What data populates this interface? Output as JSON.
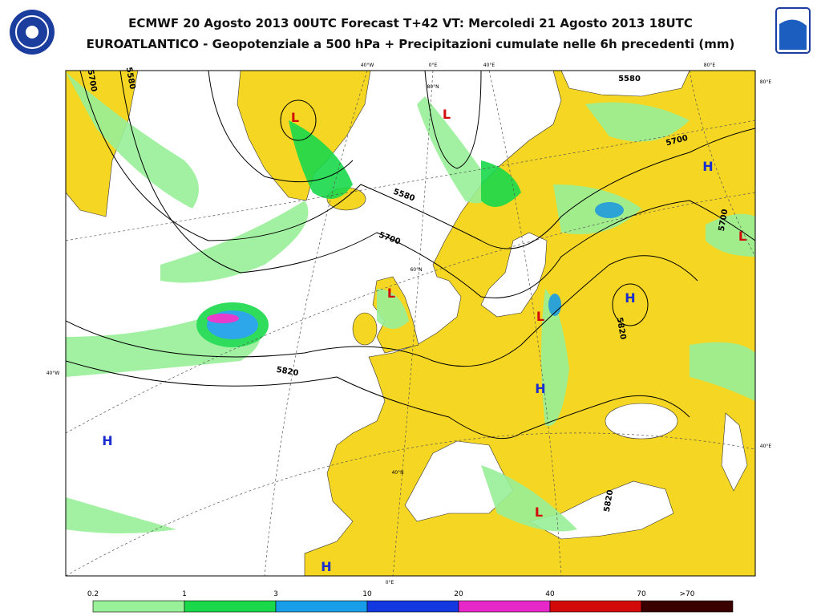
{
  "header": {
    "title": "ECMWF 20 Agosto 2013 00UTC Forecast T+42 VT: Mercoledi 21 Agosto 2013 18UTC",
    "subtitle": "EUROATLANTICO - Geopotenziale a 500 hPa + Precipitazioni cumulate nelle 6h precedenti (mm)"
  },
  "map": {
    "graticule_labels": [
      "40°W",
      "0°E",
      "40°E",
      "80°E",
      "80°E",
      "40°W",
      "40°E",
      "0°E",
      "80°N",
      "60°N",
      "40°N"
    ],
    "contour_labels": [
      "5580",
      "5700",
      "5820",
      "5580",
      "5700",
      "5700",
      "5820",
      "5820",
      "5700",
      "5580"
    ],
    "pressure_centers": [
      "L",
      "L",
      "H",
      "L",
      "L",
      "H",
      "L",
      "H",
      "H",
      "L",
      "H"
    ]
  },
  "legend": {
    "labels": [
      "0.2",
      "1",
      "3",
      "10",
      "20",
      "40",
      "70",
      ">70"
    ],
    "colors": [
      "#98f098",
      "#19d94a",
      "#189de8",
      "#1438e0",
      "#e628c8",
      "#d20a0a",
      "#3a0000"
    ]
  }
}
